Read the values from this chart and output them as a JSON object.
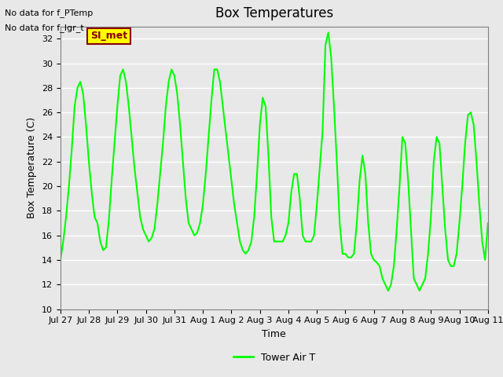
{
  "title": "Box Temperatures",
  "ylabel": "Box Temperature (C)",
  "xlabel": "Time",
  "no_data_text": [
    "No data for f_PTemp",
    "No data for f_lgr_t"
  ],
  "si_met_label": "SI_met",
  "legend_label": "Tower Air T",
  "line_color": "#00FF00",
  "background_color": "#E8E8E8",
  "plot_bg_color": "#E8E8E8",
  "ylim": [
    10,
    33
  ],
  "yticks": [
    10,
    12,
    14,
    16,
    18,
    20,
    22,
    24,
    26,
    28,
    30,
    32
  ],
  "x_labels": [
    "Jul 27",
    "Jul 28",
    "Jul 29",
    "Jul 30",
    "Jul 31",
    "Aug 1",
    "Aug 2",
    "Aug 3",
    "Aug 4",
    "Aug 5",
    "Aug 6",
    "Aug 7",
    "Aug 8",
    "Aug 9",
    "Aug 10",
    "Aug 11"
  ],
  "x_values": [
    0,
    1,
    2,
    3,
    4,
    5,
    6,
    7,
    8,
    9,
    10,
    11,
    12,
    13,
    14,
    15
  ],
  "data_x": [
    0.0,
    0.1,
    0.2,
    0.3,
    0.4,
    0.5,
    0.6,
    0.7,
    0.8,
    0.9,
    1.0,
    1.1,
    1.2,
    1.3,
    1.4,
    1.5,
    1.6,
    1.7,
    1.8,
    1.9,
    2.0,
    2.1,
    2.2,
    2.3,
    2.4,
    2.5,
    2.6,
    2.7,
    2.8,
    2.9,
    3.0,
    3.1,
    3.2,
    3.3,
    3.4,
    3.5,
    3.6,
    3.7,
    3.8,
    3.9,
    4.0,
    4.1,
    4.2,
    4.3,
    4.4,
    4.5,
    4.6,
    4.7,
    4.8,
    4.9,
    5.0,
    5.1,
    5.2,
    5.3,
    5.4,
    5.5,
    5.6,
    5.7,
    5.8,
    5.9,
    6.0,
    6.1,
    6.2,
    6.3,
    6.4,
    6.5,
    6.6,
    6.7,
    6.8,
    6.9,
    7.0,
    7.1,
    7.2,
    7.3,
    7.4,
    7.5,
    7.6,
    7.7,
    7.8,
    7.9,
    8.0,
    8.1,
    8.2,
    8.3,
    8.4,
    8.5,
    8.6,
    8.7,
    8.8,
    8.9,
    9.0,
    9.1,
    9.2,
    9.3,
    9.4,
    9.5,
    9.6,
    9.7,
    9.8,
    9.9,
    10.0,
    10.1,
    10.2,
    10.3,
    10.4,
    10.5,
    10.6,
    10.7,
    10.8,
    10.9,
    11.0,
    11.1,
    11.2,
    11.3,
    11.4,
    11.5,
    11.6,
    11.7,
    11.8,
    11.9,
    12.0,
    12.1,
    12.2,
    12.3,
    12.4,
    12.5,
    12.6,
    12.7,
    12.8,
    12.9,
    13.0,
    13.1,
    13.2,
    13.3,
    13.4,
    13.5,
    13.6,
    13.7,
    13.8,
    13.9,
    14.0,
    14.1,
    14.2,
    14.3,
    14.4,
    14.5,
    14.6,
    14.7,
    14.8,
    14.9,
    15.0
  ],
  "data_y": [
    14.0,
    15.5,
    17.5,
    20.0,
    23.0,
    26.5,
    28.0,
    28.5,
    27.5,
    25.0,
    22.0,
    19.5,
    17.5,
    17.0,
    15.5,
    14.8,
    15.0,
    17.2,
    20.5,
    23.5,
    26.5,
    29.0,
    29.5,
    28.5,
    26.5,
    24.0,
    21.5,
    19.5,
    17.5,
    16.5,
    16.0,
    15.5,
    15.8,
    16.5,
    18.5,
    21.0,
    23.5,
    26.5,
    28.5,
    29.5,
    29.0,
    27.5,
    25.0,
    22.0,
    19.0,
    17.0,
    16.5,
    16.0,
    16.2,
    17.0,
    18.5,
    21.0,
    24.0,
    27.0,
    29.5,
    29.5,
    28.5,
    26.5,
    24.5,
    22.5,
    20.5,
    18.5,
    17.0,
    15.5,
    14.8,
    14.5,
    14.8,
    15.5,
    17.5,
    21.0,
    25.0,
    27.2,
    26.5,
    22.5,
    17.5,
    15.5,
    15.5,
    15.5,
    15.5,
    16.0,
    17.0,
    19.5,
    21.0,
    21.0,
    19.0,
    16.0,
    15.5,
    15.5,
    15.5,
    16.0,
    18.5,
    21.5,
    24.5,
    31.5,
    32.5,
    30.5,
    26.5,
    22.0,
    17.0,
    14.5,
    14.5,
    14.2,
    14.2,
    14.5,
    17.0,
    20.5,
    22.5,
    21.0,
    17.0,
    14.5,
    14.0,
    13.8,
    13.5,
    12.5,
    12.0,
    11.5,
    12.0,
    13.5,
    16.5,
    20.0,
    24.0,
    23.5,
    20.5,
    16.5,
    12.5,
    12.0,
    11.5,
    12.0,
    12.5,
    14.5,
    17.5,
    22.0,
    24.0,
    23.5,
    20.0,
    16.5,
    14.0,
    13.5,
    13.5,
    14.5,
    17.0,
    20.0,
    23.5,
    25.8,
    26.0,
    25.0,
    22.0,
    18.5,
    15.5,
    14.0,
    17.0
  ]
}
